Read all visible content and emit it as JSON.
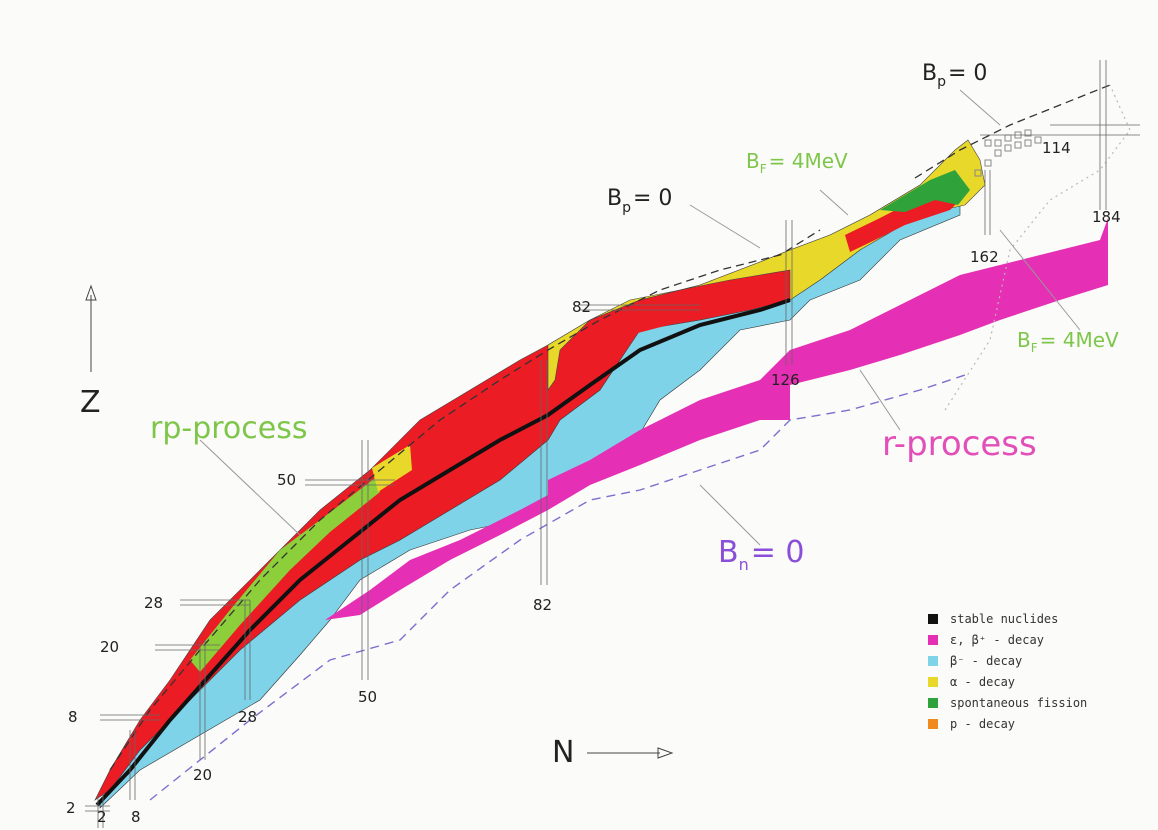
{
  "axes": {
    "z_label": "Z",
    "n_label": "N"
  },
  "magic_numbers": {
    "z": [
      "2",
      "8",
      "20",
      "28",
      "50",
      "82",
      "114"
    ],
    "n": [
      "2",
      "8",
      "20",
      "28",
      "50",
      "82",
      "126",
      "162",
      "184"
    ]
  },
  "annotations": {
    "rp_process": "rp-process",
    "r_process": "r-process",
    "bp_main": {
      "base": "B",
      "sub": "p",
      "rest": "= 0"
    },
    "bp_top": {
      "base": "B",
      "sub": "p",
      "rest": "= 0"
    },
    "bf_upper": {
      "base": "B",
      "sub": "F",
      "rest": "= 4MeV"
    },
    "bf_lower": {
      "base": "B",
      "sub": "F",
      "rest": "= 4MeV"
    },
    "bn": {
      "base": "B",
      "sub": "n",
      "rest": "= 0"
    }
  },
  "legend": [
    {
      "label": "stable nuclides",
      "color": "#111111"
    },
    {
      "label": "ε, β⁺ - decay",
      "color": "#e52fb4"
    },
    {
      "label": "β⁻ - decay",
      "color": "#7fd3e8"
    },
    {
      "label": "α - decay",
      "color": "#e8d82a"
    },
    {
      "label": "spontaneous fission",
      "color": "#2fa33a"
    },
    {
      "label": "p - decay",
      "color": "#f08a1e"
    }
  ],
  "colors": {
    "proton_rich": "#ec1c24",
    "beta_minus": "#7fd3e8",
    "alpha": "#e8d82a",
    "fission": "#2fa33a",
    "rp_process": "#8ccf3a",
    "r_process": "#e52fb4",
    "stable": "#111111",
    "bn_line": "#7a6fd0",
    "green_text": "#7ec64a",
    "magenta_text": "#e34fb8"
  }
}
